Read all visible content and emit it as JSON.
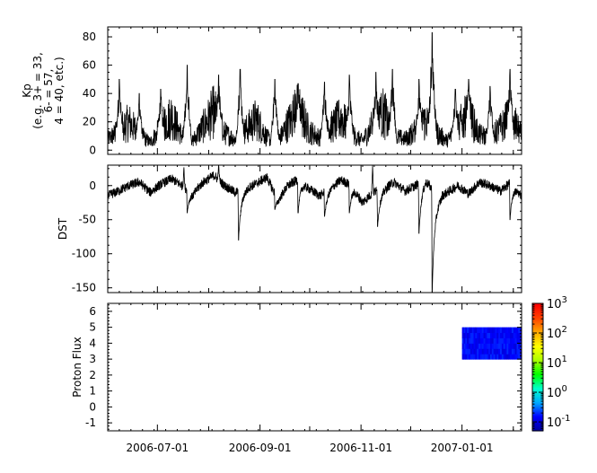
{
  "figure": {
    "x_tick_labels": [
      "2006-07-01",
      "2006-09-01",
      "2006-11-01",
      "2007-01-01"
    ]
  },
  "chart_data": [
    {
      "type": "line",
      "ylabel": [
        "Kp",
        "(e.g. 3+ = 33,",
        "6- = 57,",
        "4 = 40, etc.)"
      ],
      "ylim": [
        -3,
        87
      ],
      "yticks": [
        0,
        20,
        40,
        60,
        80
      ],
      "xlim": [
        "2006-06-01",
        "2007-02-06"
      ],
      "series": [
        {
          "x_start": "2006-06-01",
          "x_end": "2007-02-06",
          "baseline": [
            7,
            12,
            18,
            10,
            5,
            14,
            22,
            9,
            6,
            15,
            25,
            11,
            7,
            13,
            20,
            8,
            5,
            17,
            27,
            12,
            8,
            14,
            21,
            10,
            6,
            16,
            24,
            9,
            7,
            12,
            19,
            11,
            6,
            15,
            23,
            10,
            8,
            14,
            22,
            9
          ],
          "spikes": [
            {
              "x": "2006-06-08",
              "y": 50
            },
            {
              "x": "2006-06-20",
              "y": 40
            },
            {
              "x": "2006-07-03",
              "y": 43
            },
            {
              "x": "2006-07-19",
              "y": 60
            },
            {
              "x": "2006-08-07",
              "y": 53
            },
            {
              "x": "2006-08-20",
              "y": 57
            },
            {
              "x": "2006-09-10",
              "y": 50
            },
            {
              "x": "2006-09-24",
              "y": 47
            },
            {
              "x": "2006-10-10",
              "y": 48
            },
            {
              "x": "2006-10-25",
              "y": 53
            },
            {
              "x": "2006-11-10",
              "y": 55
            },
            {
              "x": "2006-11-20",
              "y": 57
            },
            {
              "x": "2006-12-06",
              "y": 50
            },
            {
              "x": "2006-12-14",
              "y": 83
            },
            {
              "x": "2006-12-28",
              "y": 43
            },
            {
              "x": "2007-01-05",
              "y": 50
            },
            {
              "x": "2007-01-18",
              "y": 45
            },
            {
              "x": "2007-01-30",
              "y": 57
            }
          ]
        }
      ]
    },
    {
      "type": "line",
      "ylabel": [
        "DST"
      ],
      "ylim": [
        -157,
        30
      ],
      "yticks": [
        0,
        -50,
        -100,
        -150
      ],
      "xlim": [
        "2006-06-01",
        "2007-02-06"
      ],
      "series": [
        {
          "x_start": "2006-06-01",
          "x_end": "2007-02-06",
          "baseline": [
            -15,
            -8,
            0,
            5,
            -10,
            2,
            10,
            0,
            -12,
            5,
            15,
            0,
            -10,
            -5,
            3,
            12,
            -20,
            0,
            10,
            -5,
            -15,
            -3,
            8,
            0,
            -25,
            -10,
            -5,
            5,
            -8,
            0,
            10,
            -20,
            -10,
            0,
            -12,
            5,
            0,
            -8,
            5,
            -15
          ],
          "dips": [
            {
              "x": "2006-07-19",
              "y": -40
            },
            {
              "x": "2006-08-19",
              "y": -80
            },
            {
              "x": "2006-09-10",
              "y": -35
            },
            {
              "x": "2006-09-24",
              "y": -40
            },
            {
              "x": "2006-10-10",
              "y": -45
            },
            {
              "x": "2006-10-25",
              "y": -40
            },
            {
              "x": "2006-11-11",
              "y": -60
            },
            {
              "x": "2006-12-06",
              "y": -70
            },
            {
              "x": "2006-12-14",
              "y": -157
            },
            {
              "x": "2007-01-30",
              "y": -50
            }
          ],
          "peaks": [
            {
              "x": "2006-07-17",
              "y": 28
            },
            {
              "x": "2006-08-07",
              "y": 32
            },
            {
              "x": "2006-11-08",
              "y": 30
            }
          ]
        }
      ]
    },
    {
      "type": "heatmap",
      "ylabel": [
        "Proton Flux"
      ],
      "ylim": [
        -1.5,
        6.5
      ],
      "yticks": [
        -1,
        0,
        1,
        2,
        3,
        4,
        5,
        6
      ],
      "xlim": [
        "2006-06-01",
        "2007-02-06"
      ],
      "cells": {
        "x_start": "2007-01-01",
        "x_end": "2007-02-06",
        "y_start": 3,
        "y_end": 5,
        "value_range": [
          0.1,
          0.2
        ]
      },
      "colorbar": {
        "scale": "log",
        "range": [
          0.05,
          1000
        ],
        "ticks": [
          {
            "base": "10",
            "exp": "3",
            "v": 1000
          },
          {
            "base": "10",
            "exp": "2",
            "v": 100
          },
          {
            "base": "10",
            "exp": "1",
            "v": 10
          },
          {
            "base": "10",
            "exp": "0",
            "v": 1
          },
          {
            "base": "10",
            "exp": "-1",
            "v": 0.1
          }
        ],
        "colors": [
          "#0000a0",
          "#0000ff",
          "#00aaff",
          "#00ffcc",
          "#00ff00",
          "#aaff00",
          "#ffff00",
          "#ffaa00",
          "#ff4400",
          "#ff0000"
        ]
      }
    }
  ]
}
